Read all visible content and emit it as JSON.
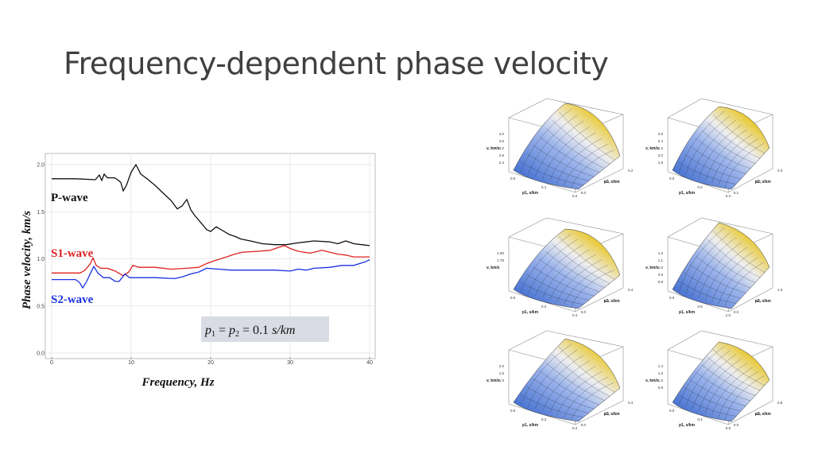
{
  "slide": {
    "title": "Frequency-dependent phase velocity"
  },
  "chart_data": {
    "type": "line",
    "title": "",
    "xlabel": "Frequency, Hz",
    "ylabel": "Phase velocity, km/s",
    "xlim": [
      0,
      40
    ],
    "ylim": [
      0,
      2.0
    ],
    "x_ticks": [
      "0",
      "10",
      "20",
      "30",
      "40"
    ],
    "y_ticks": [
      "0.0",
      "0.5",
      "1.0",
      "1.5",
      "2.0"
    ],
    "grid": true,
    "annotation": {
      "parts": [
        "p",
        "1",
        " = ",
        "p",
        "2",
        " = 0.1 ",
        "s/km"
      ]
    },
    "series": [
      {
        "name": "P-wave",
        "color": "#111111",
        "x": [
          0,
          3,
          5.5,
          6,
          6.3,
          6.6,
          7,
          7.5,
          7.9,
          8.3,
          8.7,
          9,
          9.4,
          10,
          10.6,
          11.2,
          12,
          13,
          14,
          15,
          15.8,
          16.4,
          17,
          17.5,
          18,
          18.6,
          19,
          19.5,
          20,
          20.7,
          21.5,
          22.3,
          23,
          23.8,
          25,
          26.5,
          28,
          29.5,
          31,
          33,
          35,
          36,
          37,
          38,
          39,
          40
        ],
        "y": [
          1.85,
          1.85,
          1.84,
          1.89,
          1.83,
          1.9,
          1.86,
          1.86,
          1.86,
          1.84,
          1.81,
          1.72,
          1.78,
          1.92,
          2.0,
          1.9,
          1.85,
          1.78,
          1.7,
          1.62,
          1.53,
          1.56,
          1.63,
          1.52,
          1.46,
          1.4,
          1.36,
          1.31,
          1.29,
          1.34,
          1.3,
          1.26,
          1.24,
          1.21,
          1.19,
          1.16,
          1.15,
          1.15,
          1.17,
          1.19,
          1.18,
          1.16,
          1.19,
          1.16,
          1.15,
          1.14
        ]
      },
      {
        "name": "S1-wave",
        "color": "#e02020",
        "x": [
          0,
          3,
          3.6,
          4.2,
          4.8,
          5.2,
          5.6,
          6.2,
          7,
          8,
          9,
          9.7,
          10.2,
          11,
          13,
          15,
          17,
          18.5,
          19.5,
          20.5,
          22,
          23,
          24,
          26,
          27.5,
          28.5,
          29.3,
          30,
          31,
          32.5,
          34,
          35,
          36,
          37,
          38,
          40
        ],
        "y": [
          0.85,
          0.85,
          0.85,
          0.88,
          0.94,
          1.01,
          0.93,
          0.9,
          0.9,
          0.87,
          0.82,
          0.86,
          0.93,
          0.91,
          0.91,
          0.89,
          0.9,
          0.91,
          0.95,
          0.98,
          1.02,
          1.05,
          1.07,
          1.08,
          1.09,
          1.12,
          1.14,
          1.11,
          1.08,
          1.06,
          1.09,
          1.07,
          1.05,
          1.04,
          1.02,
          1.02
        ]
      },
      {
        "name": "S2-wave",
        "color": "#1a30e0",
        "x": [
          0,
          3,
          3.5,
          3.9,
          4.4,
          4.9,
          5.3,
          5.8,
          6.5,
          7.3,
          8,
          8.5,
          9.2,
          9.8,
          11,
          13,
          15.5,
          16.5,
          17.5,
          18.5,
          19.5,
          21,
          22.5,
          24,
          25.5,
          28,
          30,
          31,
          32,
          33,
          35,
          36.5,
          38,
          39.5,
          40
        ],
        "y": [
          0.78,
          0.78,
          0.75,
          0.69,
          0.76,
          0.85,
          0.92,
          0.85,
          0.8,
          0.8,
          0.76,
          0.76,
          0.84,
          0.8,
          0.8,
          0.8,
          0.79,
          0.81,
          0.84,
          0.86,
          0.9,
          0.89,
          0.88,
          0.88,
          0.88,
          0.88,
          0.87,
          0.89,
          0.88,
          0.9,
          0.91,
          0.93,
          0.93,
          0.97,
          0.99
        ]
      }
    ]
  },
  "thumbnails": [
    {
      "z_label": "v, km/s",
      "x_label": "p1, s/km",
      "y_label": "p2, s/km",
      "z_ticks": [
        "4.0",
        "3.6",
        "3.2",
        "2.8",
        "2.4"
      ],
      "x_ticks": [
        "0.0",
        "0.1",
        "0.2"
      ],
      "y_ticks": [
        "0.2",
        "0.1",
        "0.0"
      ]
    },
    {
      "z_label": "v, km/s",
      "x_label": "p1, s/km",
      "y_label": "p2, s/km",
      "z_ticks": [
        "2.6",
        "2.4",
        "2.2",
        "2.0",
        "1.8"
      ],
      "x_ticks": [
        "0.0",
        "0.2",
        "0.4"
      ],
      "y_ticks": [
        "0.3",
        "0.2",
        "0.1"
      ]
    },
    {
      "z_label": "v, km/s",
      "x_label": "p1, s/km",
      "y_label": "p2, s/km",
      "z_ticks": [
        "1.80",
        "1.75"
      ],
      "x_ticks": [
        "0.0",
        "0.2",
        "0.4"
      ],
      "y_ticks": [
        "0.4",
        "0.2",
        "0.0"
      ]
    },
    {
      "z_label": "v, km/s",
      "x_label": "p1, s/km",
      "y_label": "p2, s/km",
      "z_ticks": [
        "1.2",
        "1.1",
        "1.0",
        "0.9",
        "0.8"
      ],
      "x_ticks": [
        "0.0",
        "0.5",
        "1.0"
      ],
      "y_ticks": [
        "1.0",
        "0.5",
        "0.0"
      ]
    },
    {
      "z_label": "v, km/s",
      "x_label": "p1, s/km",
      "y_label": "p2, s/km",
      "z_ticks": [
        "2.0",
        "1.5",
        "1.0"
      ],
      "x_ticks": [
        "0.0",
        "0.2",
        "0.4"
      ],
      "y_ticks": [
        "0.4",
        "0.2",
        "0.0"
      ]
    },
    {
      "z_label": "v, km/s",
      "x_label": "p1, s/km",
      "y_label": "p2, s/km",
      "z_ticks": [
        "1.4",
        "1.2",
        "1.0",
        "0.8"
      ],
      "x_ticks": [
        "0.0",
        "0.4",
        "0.8"
      ],
      "y_ticks": [
        "0.8",
        "0.4",
        "0.0"
      ]
    }
  ],
  "colors": {
    "title": "#404040",
    "surface_low": "#2a5cc8",
    "surface_mid": "#e8e8f0",
    "surface_high": "#e0c020",
    "surface_peak": "#c03010"
  }
}
